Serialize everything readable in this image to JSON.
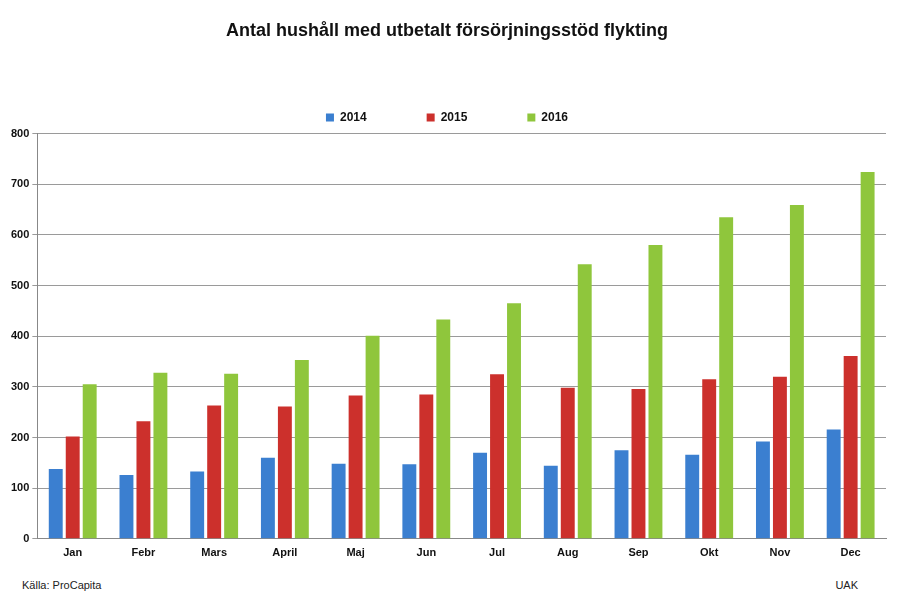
{
  "chart_data": {
    "type": "bar",
    "title": "Antal hushåll med utbetalt försörjningsstöd flykting",
    "annotations": [
      "Källa: ProCapita",
      "UAK"
    ],
    "categories": [
      "Jan",
      "Febr",
      "Mars",
      "April",
      "Maj",
      "Jun",
      "Jul",
      "Aug",
      "Sep",
      "Okt",
      "Nov",
      "Dec"
    ],
    "series": [
      {
        "name": "2014",
        "color": "#3b7fd0",
        "values": [
          138,
          126,
          133,
          160,
          148,
          147,
          170,
          144,
          175,
          166,
          192,
          216
        ]
      },
      {
        "name": "2015",
        "color": "#cc302c",
        "values": [
          202,
          232,
          263,
          261,
          283,
          285,
          325,
          298,
          296,
          315,
          320,
          361
        ]
      },
      {
        "name": "2016",
        "color": "#8fc63c",
        "values": [
          305,
          328,
          326,
          353,
          401,
          433,
          465,
          542,
          580,
          635,
          659,
          724
        ]
      }
    ],
    "ylim": [
      0,
      800
    ],
    "yticks": [
      0,
      100,
      200,
      300,
      400,
      500,
      600,
      700,
      800
    ],
    "grid": true,
    "legend": "top"
  }
}
